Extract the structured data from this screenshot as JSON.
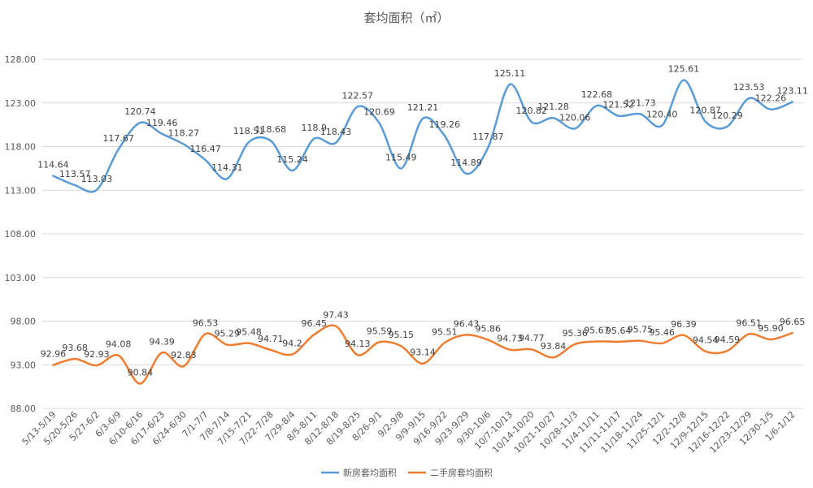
{
  "chart_data": {
    "type": "line",
    "title": "套均面积（㎡）",
    "xlabel": "",
    "ylabel": "",
    "ylim": [
      88,
      128
    ],
    "yticks": [
      "88.00",
      "93.00",
      "98.00",
      "103.00",
      "108.00",
      "113.00",
      "118.00",
      "123.00",
      "128.00"
    ],
    "grid": true,
    "legend_position": "bottom",
    "categories": [
      "5/13-5/19",
      "5/20-5/26",
      "5/27-6/2",
      "6/3-6/9",
      "6/10-6/16",
      "6/17-6/23",
      "6/24-6/30",
      "7/1-7/7",
      "7/8-7/14",
      "7/15-7/21",
      "7/22-7/28",
      "7/29-8/4",
      "8/5-8/11",
      "8/12-8/18",
      "8/19-8/25",
      "8/26-9/1",
      "9/2-9/8",
      "9/9-9/15",
      "9/16-9/22",
      "9/23-9/29",
      "9/30-10/6",
      "10/7-10/13",
      "10/14-10/20",
      "10/21-10/27",
      "10/28-11/3",
      "11/4-11/11",
      "11/11-11/17",
      "11/18-11/24",
      "11/25-12/1",
      "12/2-12/8",
      "12/9-12/15",
      "12/16-12/22",
      "12/23-12/29",
      "12/30-1/5",
      "1/6-1/12"
    ],
    "series": [
      {
        "name": "新房套均面积",
        "color": "#5b9bd5",
        "values": [
          114.64,
          113.57,
          113.03,
          117.67,
          120.74,
          119.46,
          118.27,
          116.47,
          114.31,
          118.51,
          118.68,
          115.24,
          118.9,
          118.43,
          122.57,
          120.69,
          115.49,
          121.21,
          119.26,
          114.89,
          117.87,
          125.11,
          120.82,
          121.28,
          120.06,
          122.68,
          121.52,
          121.73,
          120.4,
          125.61,
          120.87,
          120.29,
          123.53,
          122.26,
          123.11
        ],
        "labels": [
          "114.64",
          "113.57",
          "113.03",
          "117.67",
          "120.74",
          "119.46",
          "118.27",
          "116.47",
          "114.31",
          "118.51",
          "118.68",
          "115.24",
          "118.9",
          "118.43",
          "122.57",
          "120.69",
          "115.49",
          "121.21",
          "119.26",
          "114.89",
          "117.87",
          "125.11",
          "120.82",
          "121.28",
          "120.06",
          "122.68",
          "121.52",
          "121.73",
          "120.40",
          "125.61",
          "120.87",
          "120.29",
          "123.53",
          "122.26",
          "123.11"
        ]
      },
      {
        "name": "二手房套均面积",
        "color": "#ed7d31",
        "values": [
          92.96,
          93.68,
          92.93,
          94.08,
          90.84,
          94.39,
          92.83,
          96.53,
          95.29,
          95.48,
          94.71,
          94.2,
          96.45,
          97.43,
          94.13,
          95.59,
          95.15,
          93.14,
          95.51,
          96.43,
          95.86,
          94.73,
          94.77,
          93.84,
          95.36,
          95.67,
          95.64,
          95.75,
          95.46,
          96.39,
          94.54,
          94.59,
          96.51,
          95.9,
          96.65
        ],
        "labels": [
          "92.96",
          "93.68",
          "92.93",
          "94.08",
          "90.84",
          "94.39",
          "92.83",
          "96.53",
          "95.29",
          "95.48",
          "94.71",
          "94.2",
          "96.45",
          "97.43",
          "94.13",
          "95.59",
          "95.15",
          "93.14",
          "95.51",
          "96.43",
          "95.86",
          "94.73",
          "94.77",
          "93.84",
          "95.36",
          "95.67",
          "95.64",
          "95.75",
          "95.46",
          "96.39",
          "94.54",
          "94.59",
          "96.51",
          "95.90",
          "96.65"
        ]
      }
    ]
  }
}
